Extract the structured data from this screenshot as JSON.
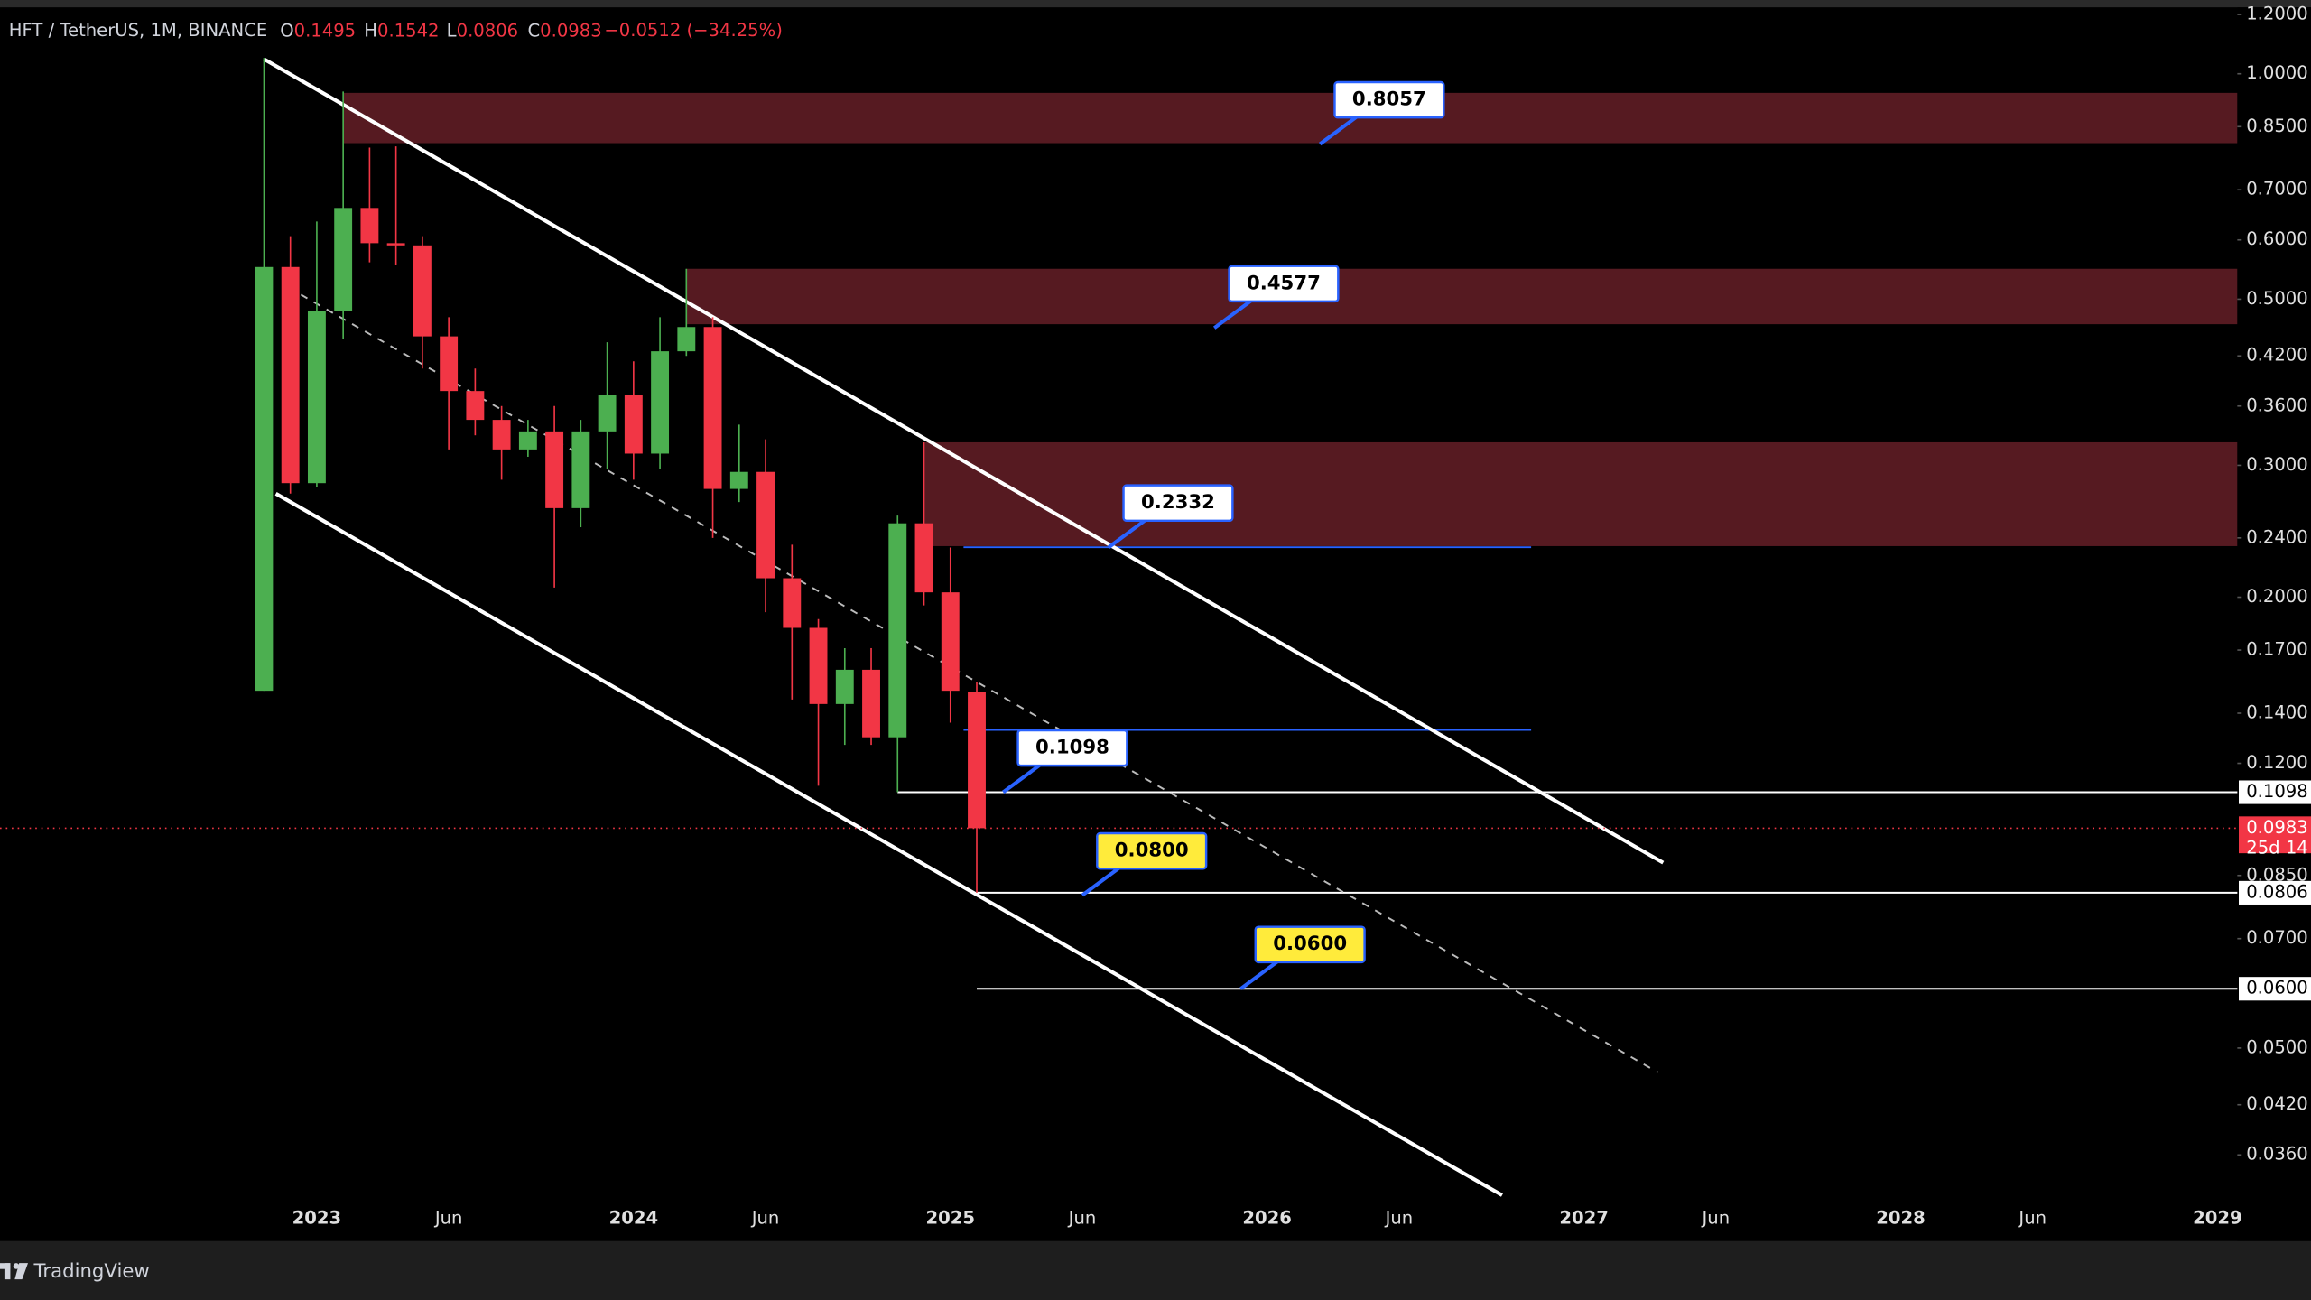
{
  "header": {
    "symbol": "HFT / TetherUS, 1M, BINANCE",
    "fields": [
      {
        "key": "O",
        "value": "0.1495"
      },
      {
        "key": "H",
        "value": "0.1542"
      },
      {
        "key": "L",
        "value": "0.0806"
      },
      {
        "key": "C",
        "value": "0.0983"
      }
    ],
    "change": "−0.0512 (−34.25%)"
  },
  "footer": "TradingView",
  "chart_data": {
    "type": "candlestick",
    "up_color": "#4caf50",
    "down_color": "#f23645",
    "open": [
      0.15,
      0.552,
      0.284,
      0.482,
      0.662,
      0.594,
      0.59,
      0.446,
      0.377,
      0.345,
      0.315,
      0.333,
      0.263,
      0.333,
      0.372,
      0.311,
      0.426,
      0.459,
      0.279,
      0.294,
      0.212,
      0.182,
      0.144,
      0.16,
      0.13,
      0.251,
      0.203,
      0.1495
    ],
    "high": [
      1.05,
      0.607,
      0.635,
      0.947,
      0.797,
      0.8,
      0.607,
      0.473,
      0.404,
      0.36,
      0.345,
      0.36,
      0.345,
      0.438,
      0.413,
      0.473,
      0.549,
      0.473,
      0.34,
      0.325,
      0.235,
      0.187,
      0.171,
      0.171,
      0.257,
      0.322,
      0.233,
      0.1542
    ],
    "low": [
      0.15,
      0.275,
      0.281,
      0.442,
      0.56,
      0.555,
      0.404,
      0.315,
      0.329,
      0.287,
      0.308,
      0.206,
      0.248,
      0.297,
      0.287,
      0.297,
      0.42,
      0.24,
      0.268,
      0.191,
      0.146,
      0.112,
      0.127,
      0.127,
      0.1098,
      0.195,
      0.136,
      0.0806
    ],
    "close": [
      0.552,
      0.284,
      0.482,
      0.662,
      0.594,
      0.59,
      0.446,
      0.377,
      0.345,
      0.315,
      0.333,
      0.263,
      0.333,
      0.372,
      0.311,
      0.426,
      0.459,
      0.279,
      0.294,
      0.212,
      0.182,
      0.144,
      0.16,
      0.13,
      0.251,
      0.203,
      0.15,
      0.0983
    ],
    "xlim": [
      -10,
      74.75
    ],
    "xticks": [
      {
        "value": 2,
        "label": "2023"
      },
      {
        "value": 7,
        "label": "Jun"
      },
      {
        "value": 14,
        "label": "2024"
      },
      {
        "value": 19,
        "label": "Jun"
      },
      {
        "value": 26,
        "label": "2025"
      },
      {
        "value": 31,
        "label": "Jun"
      },
      {
        "value": 38,
        "label": "2026"
      },
      {
        "value": 43,
        "label": "Jun"
      },
      {
        "value": 50,
        "label": "2027"
      },
      {
        "value": 55,
        "label": "Jun"
      },
      {
        "value": 62,
        "label": "2028"
      },
      {
        "value": 67,
        "label": "Jun"
      },
      {
        "value": 74,
        "label": "2029"
      }
    ],
    "ylim": [
      0.028,
      1.21
    ],
    "log_scale": true,
    "yticks": [
      {
        "value": 1.2,
        "label": "1.2000"
      },
      {
        "value": 1.0,
        "label": "1.0000"
      },
      {
        "value": 0.85,
        "label": "0.8500"
      },
      {
        "value": 0.7,
        "label": "0.7000"
      },
      {
        "value": 0.6,
        "label": "0.6000"
      },
      {
        "value": 0.5,
        "label": "0.5000"
      },
      {
        "value": 0.42,
        "label": "0.4200"
      },
      {
        "value": 0.36,
        "label": "0.3600"
      },
      {
        "value": 0.3,
        "label": "0.3000"
      },
      {
        "value": 0.24,
        "label": "0.2400"
      },
      {
        "value": 0.2,
        "label": "0.2000"
      },
      {
        "value": 0.17,
        "label": "0.1700"
      },
      {
        "value": 0.14,
        "label": "0.1400"
      },
      {
        "value": 0.12,
        "label": "0.1200"
      },
      {
        "value": 0.085,
        "label": "0.0850"
      },
      {
        "value": 0.07,
        "label": "0.0700"
      },
      {
        "value": 0.05,
        "label": "0.0500"
      },
      {
        "value": 0.042,
        "label": "0.0420"
      },
      {
        "value": 0.036,
        "label": "0.0360"
      }
    ],
    "zones": [
      {
        "from": 0.943,
        "to": 0.808,
        "x": 3,
        "color": "#561a21"
      },
      {
        "from": 0.549,
        "to": 0.463,
        "x": 16,
        "color": "#561a21"
      },
      {
        "from": 0.322,
        "to": 0.234,
        "x": 25,
        "color": "#561a21"
      }
    ],
    "trendlines": [
      {
        "x": [
          0,
          53
        ],
        "values": [
          1.046,
          0.0884
        ],
        "color": "#ffffff",
        "dashed": false
      },
      {
        "x": [
          0.45,
          46.9
        ],
        "values": [
          0.275,
          0.0318
        ],
        "color": "#ffffff",
        "dashed": false
      },
      {
        "x": [
          1.4,
          52.8
        ],
        "values": [
          0.507,
          0.0464
        ],
        "color": "#bbbbbb",
        "dashed": true
      }
    ],
    "hlines": [
      {
        "value": 0.2332,
        "x_from": 26.5,
        "x_to": 48,
        "color": "#2962ff"
      },
      {
        "value": 0.133,
        "x_from": 26.5,
        "x_to": 48,
        "color": "#2962ff"
      },
      {
        "value": 0.1098,
        "x_from": 24,
        "color": "#ffffff",
        "axis_label": "0.1098"
      },
      {
        "value": 0.0806,
        "x_from": 27,
        "color": "#ffffff",
        "axis_label": "0.0806"
      },
      {
        "value": 0.06,
        "x_from": 27,
        "color": "#ffffff",
        "axis_label": "0.0600"
      }
    ],
    "current": {
      "label": "0.0983",
      "countdown": "25d 14",
      "color": "#f23645"
    },
    "callouts": [
      {
        "value": 0.8057,
        "label": "0.8057",
        "x": 40,
        "color": "#ffffff"
      },
      {
        "value": 0.4577,
        "label": "0.4577",
        "x": 36,
        "color": "#ffffff"
      },
      {
        "value": 0.2332,
        "label": "0.2332",
        "x": 32,
        "color": "#ffffff"
      },
      {
        "value": 0.1098,
        "label": "0.1098",
        "x": 28,
        "color": "#ffffff"
      },
      {
        "value": 0.08,
        "label": "0.0800",
        "x": 31,
        "color": "#ffeb3b"
      },
      {
        "value": 0.06,
        "label": "0.0600",
        "x": 37,
        "color": "#ffeb3b"
      }
    ]
  }
}
